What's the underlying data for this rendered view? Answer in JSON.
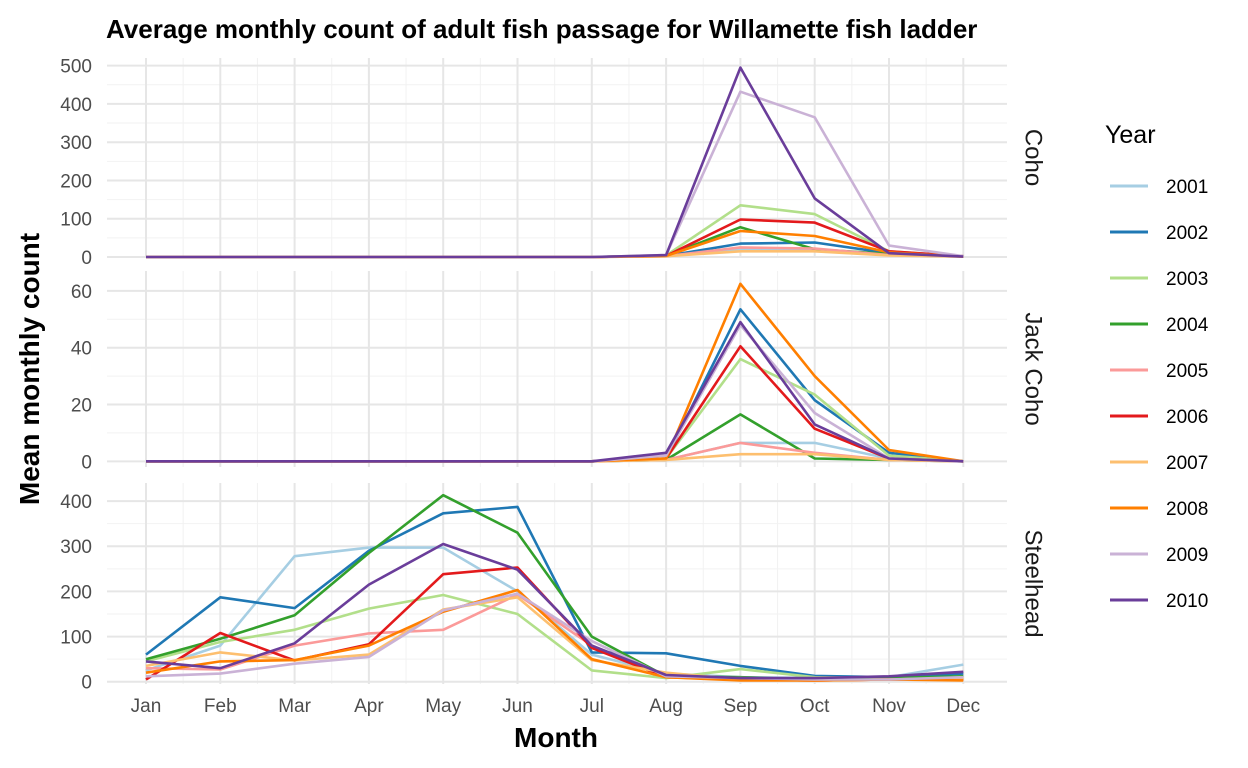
{
  "chart_data": {
    "type": "line",
    "title": "Average monthly count of adult fish passage for Willamette fish ladder",
    "xlabel": "Month",
    "ylabel": "Mean monthly count",
    "categories": [
      "Jan",
      "Feb",
      "Mar",
      "Apr",
      "May",
      "Jun",
      "Jul",
      "Aug",
      "Sep",
      "Oct",
      "Nov",
      "Dec"
    ],
    "legend": {
      "title": "Year",
      "position": "right"
    },
    "grid": true,
    "panels": [
      {
        "name": "Coho",
        "ylim": [
          0,
          520
        ],
        "yticks": [
          0,
          100,
          200,
          300,
          400,
          500
        ],
        "series": [
          {
            "name": "2001",
            "color": "#a6cee3",
            "values": [
              0,
              0,
              0,
              0,
              0,
              0,
              0,
              2,
              20,
              20,
              5,
              1
            ]
          },
          {
            "name": "2002",
            "color": "#1f78b4",
            "values": [
              0,
              0,
              0,
              0,
              0,
              0,
              0,
              3,
              35,
              38,
              10,
              1
            ]
          },
          {
            "name": "2003",
            "color": "#b2df8a",
            "values": [
              0,
              0,
              0,
              0,
              0,
              0,
              0,
              4,
              135,
              112,
              15,
              2
            ]
          },
          {
            "name": "2004",
            "color": "#33a02c",
            "values": [
              0,
              0,
              0,
              0,
              0,
              0,
              0,
              3,
              78,
              20,
              8,
              1
            ]
          },
          {
            "name": "2005",
            "color": "#fb9a99",
            "values": [
              0,
              0,
              0,
              0,
              0,
              0,
              0,
              2,
              25,
              22,
              5,
              1
            ]
          },
          {
            "name": "2006",
            "color": "#e31a1c",
            "values": [
              0,
              0,
              0,
              0,
              0,
              0,
              0,
              3,
              98,
              90,
              15,
              2
            ]
          },
          {
            "name": "2007",
            "color": "#fdbf6f",
            "values": [
              0,
              0,
              0,
              0,
              0,
              0,
              0,
              2,
              15,
              15,
              4,
              1
            ]
          },
          {
            "name": "2008",
            "color": "#ff7f00",
            "values": [
              0,
              0,
              0,
              0,
              0,
              0,
              0,
              3,
              68,
              55,
              12,
              1
            ]
          },
          {
            "name": "2009",
            "color": "#cab2d6",
            "values": [
              0,
              0,
              0,
              0,
              0,
              0,
              0,
              5,
              432,
              365,
              30,
              2
            ]
          },
          {
            "name": "2010",
            "color": "#6a3d9a",
            "values": [
              0,
              0,
              0,
              0,
              0,
              0,
              0,
              5,
              495,
              153,
              10,
              1
            ]
          }
        ]
      },
      {
        "name": "Jack Coho",
        "ylim": [
          -2,
          67
        ],
        "yticks": [
          0,
          20,
          40,
          60
        ],
        "series": [
          {
            "name": "2001",
            "color": "#a6cee3",
            "values": [
              0,
              0,
              0,
              0,
              0,
              0,
              0,
              0.5,
              6.5,
              6.5,
              1,
              0
            ]
          },
          {
            "name": "2002",
            "color": "#1f78b4",
            "values": [
              0,
              0,
              0,
              0,
              0,
              0,
              0,
              1,
              53.5,
              21.5,
              3,
              0
            ]
          },
          {
            "name": "2003",
            "color": "#b2df8a",
            "values": [
              0,
              0,
              0,
              0,
              0,
              0,
              0,
              1,
              36,
              23.5,
              2,
              0
            ]
          },
          {
            "name": "2004",
            "color": "#33a02c",
            "values": [
              0,
              0,
              0,
              0,
              0,
              0,
              0,
              0.5,
              16.5,
              1,
              0.5,
              0
            ]
          },
          {
            "name": "2005",
            "color": "#fb9a99",
            "values": [
              0,
              0,
              0,
              0,
              0,
              0,
              0,
              0.5,
              6.5,
              3,
              0.5,
              0
            ]
          },
          {
            "name": "2006",
            "color": "#e31a1c",
            "values": [
              0,
              0,
              0,
              0,
              0,
              0,
              0,
              1,
              40.5,
              11.5,
              1,
              0
            ]
          },
          {
            "name": "2007",
            "color": "#fdbf6f",
            "values": [
              0,
              0,
              0,
              0,
              0,
              0,
              0,
              0.5,
              2.5,
              2.5,
              0.5,
              0
            ]
          },
          {
            "name": "2008",
            "color": "#ff7f00",
            "values": [
              0,
              0,
              0,
              0,
              0,
              0,
              0,
              1,
              62.5,
              30,
              4,
              0
            ]
          },
          {
            "name": "2009",
            "color": "#cab2d6",
            "values": [
              0,
              0,
              0,
              0,
              0,
              0,
              0,
              2,
              48,
              17,
              1,
              0
            ]
          },
          {
            "name": "2010",
            "color": "#6a3d9a",
            "values": [
              0,
              0,
              0,
              0,
              0,
              0,
              0,
              3,
              49,
              13,
              1,
              0
            ]
          }
        ]
      },
      {
        "name": "Steelhead",
        "ylim": [
          -5,
          440
        ],
        "yticks": [
          0,
          100,
          200,
          300,
          400
        ],
        "series": [
          {
            "name": "2001",
            "color": "#a6cee3",
            "values": [
              25,
              80,
              278,
              297,
              297,
              200,
              60,
              18,
              10,
              8,
              10,
              38
            ]
          },
          {
            "name": "2002",
            "color": "#1f78b4",
            "values": [
              60,
              187,
              163,
              290,
              373,
              387,
              65,
              63,
              35,
              13,
              10,
              18
            ]
          },
          {
            "name": "2003",
            "color": "#b2df8a",
            "values": [
              45,
              88,
              115,
              162,
              192,
              150,
              25,
              8,
              28,
              10,
              8,
              10
            ]
          },
          {
            "name": "2004",
            "color": "#33a02c",
            "values": [
              50,
              95,
              147,
              285,
              413,
              330,
              100,
              12,
              10,
              5,
              8,
              12
            ]
          },
          {
            "name": "2005",
            "color": "#fb9a99",
            "values": [
              30,
              27,
              80,
              107,
              115,
              193,
              80,
              12,
              5,
              3,
              5,
              8
            ]
          },
          {
            "name": "2006",
            "color": "#e31a1c",
            "values": [
              5,
              108,
              47,
              83,
              238,
              253,
              75,
              10,
              5,
              3,
              5,
              5
            ]
          },
          {
            "name": "2007",
            "color": "#fdbf6f",
            "values": [
              35,
              65,
              47,
              60,
              160,
              187,
              48,
              20,
              5,
              3,
              5,
              8
            ]
          },
          {
            "name": "2008",
            "color": "#ff7f00",
            "values": [
              20,
              45,
              48,
              80,
              155,
              203,
              50,
              10,
              3,
              3,
              5,
              3
            ]
          },
          {
            "name": "2009",
            "color": "#cab2d6",
            "values": [
              12,
              18,
              40,
              55,
              158,
              195,
              90,
              12,
              8,
              5,
              5,
              10
            ]
          },
          {
            "name": "2010",
            "color": "#6a3d9a",
            "values": [
              45,
              30,
              85,
              215,
              305,
              248,
              80,
              15,
              8,
              8,
              12,
              22
            ]
          }
        ]
      }
    ]
  }
}
